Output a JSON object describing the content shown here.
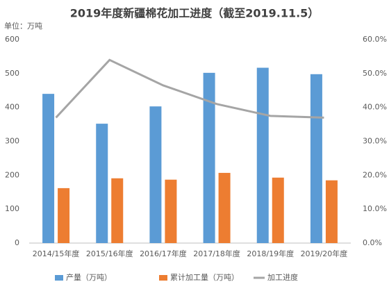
{
  "chart_data": {
    "type": "bar",
    "title": "2019年度新疆棉花加工进度（截至2019.11.5）",
    "unit_label": "单位：万吨",
    "categories": [
      "2014/15年度",
      "2015/16年度",
      "2016/17年度",
      "2017/18年度",
      "2018/19年度",
      "2019/20年度"
    ],
    "series": [
      {
        "name": "产量（万吨）",
        "color": "#5b9bd5",
        "values": [
          440,
          352,
          403,
          502,
          517,
          498
        ]
      },
      {
        "name": "累计加工量（万吨）",
        "color": "#ed7d31",
        "values": [
          162,
          191,
          187,
          207,
          193,
          185
        ]
      },
      {
        "name": "加工进度",
        "color": "#a5a5a5",
        "type": "line",
        "axis": "y2",
        "values": [
          37,
          54,
          46.5,
          41,
          37.5,
          37
        ]
      }
    ],
    "ylim": [
      0,
      600
    ],
    "yticks": [
      0,
      100,
      200,
      300,
      400,
      500,
      600
    ],
    "y2lim": [
      0,
      60
    ],
    "y2ticks": [
      {
        "value": 0,
        "label": "0.0%"
      },
      {
        "value": 10,
        "label": "10.0%"
      },
      {
        "value": 20,
        "label": "20.0%"
      },
      {
        "value": 30,
        "label": "30.0%"
      },
      {
        "value": 40,
        "label": "40.0%"
      },
      {
        "value": 50,
        "label": "50.0%"
      },
      {
        "value": 60,
        "label": "60.0%"
      }
    ],
    "grid": false,
    "legend": "bottom"
  }
}
